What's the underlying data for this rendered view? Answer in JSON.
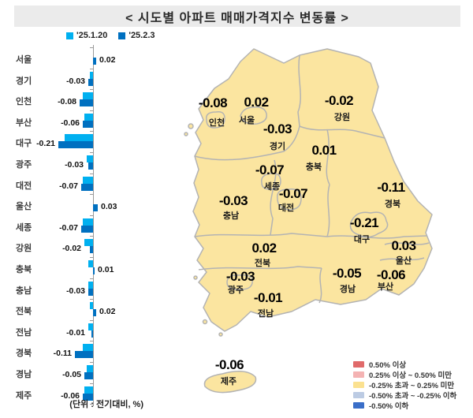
{
  "title": "<  시도별  아파트  매매가격지수  변동률  >",
  "unit_note": "(단위 : 전기대비, %)",
  "chart_data": {
    "type": "bar",
    "orientation": "horizontal",
    "unit": "전기대비, %",
    "categories": [
      "서울",
      "경기",
      "인천",
      "부산",
      "대구",
      "광주",
      "대전",
      "울산",
      "세종",
      "강원",
      "충북",
      "충남",
      "전북",
      "전남",
      "경북",
      "경남",
      "제주"
    ],
    "series": [
      {
        "name": "'25.1.20",
        "color": "#00b0f0",
        "values": [
          0.0,
          -0.02,
          -0.06,
          -0.05,
          -0.17,
          -0.04,
          -0.06,
          0.0,
          -0.06,
          -0.05,
          -0.03,
          -0.03,
          -0.02,
          -0.03,
          -0.06,
          -0.04,
          -0.05
        ]
      },
      {
        "name": "'25.2.3",
        "color": "#0070c0",
        "values": [
          0.02,
          -0.03,
          -0.08,
          -0.06,
          -0.21,
          -0.03,
          -0.07,
          0.03,
          -0.07,
          -0.02,
          0.01,
          -0.03,
          0.02,
          -0.01,
          -0.11,
          -0.05,
          -0.06
        ]
      }
    ],
    "value_labels": [
      "0.02",
      "-0.03",
      "-0.08",
      "-0.06",
      "-0.21",
      "-0.03",
      "-0.07",
      "0.03",
      "-0.07",
      "-0.02",
      "0.01",
      "-0.03",
      "0.02",
      "-0.01",
      "-0.11",
      "-0.05",
      "-0.06"
    ],
    "xlim": [
      -0.25,
      0.1
    ],
    "grid": false,
    "legend_position": "top"
  },
  "map": {
    "fill_color": "#fbe5a0",
    "border_color": "#b3b3b3",
    "regions": [
      {
        "name": "인천",
        "value": "-0.08"
      },
      {
        "name": "서울",
        "value": "0.02"
      },
      {
        "name": "경기",
        "value": "-0.03"
      },
      {
        "name": "강원",
        "value": "-0.02"
      },
      {
        "name": "충북",
        "value": "0.01"
      },
      {
        "name": "세종",
        "value": "-0.07"
      },
      {
        "name": "충남",
        "value": "-0.03"
      },
      {
        "name": "대전",
        "value": "-0.07"
      },
      {
        "name": "경북",
        "value": "-0.11"
      },
      {
        "name": "대구",
        "value": "-0.21"
      },
      {
        "name": "전북",
        "value": "0.02"
      },
      {
        "name": "울산",
        "value": "0.03"
      },
      {
        "name": "경남",
        "value": "-0.05"
      },
      {
        "name": "광주",
        "value": "-0.03"
      },
      {
        "name": "부산",
        "value": "-0.06"
      },
      {
        "name": "전남",
        "value": "-0.01"
      },
      {
        "name": "제주",
        "value": "-0.06"
      }
    ]
  },
  "map_legend": {
    "items": [
      {
        "color": "#e06a6a",
        "label": "0.50% 이상"
      },
      {
        "color": "#f4b3b3",
        "label": "0.25% 이상 ~ 0.50% 미만"
      },
      {
        "color": "#fbe190",
        "label": "-0.25% 초과 ~ 0.25% 미만"
      },
      {
        "color": "#bccbe3",
        "label": "-0.50% 초과 ~ -0.25% 이하"
      },
      {
        "color": "#3a6ec8",
        "label": "-0.50% 이하"
      }
    ]
  }
}
